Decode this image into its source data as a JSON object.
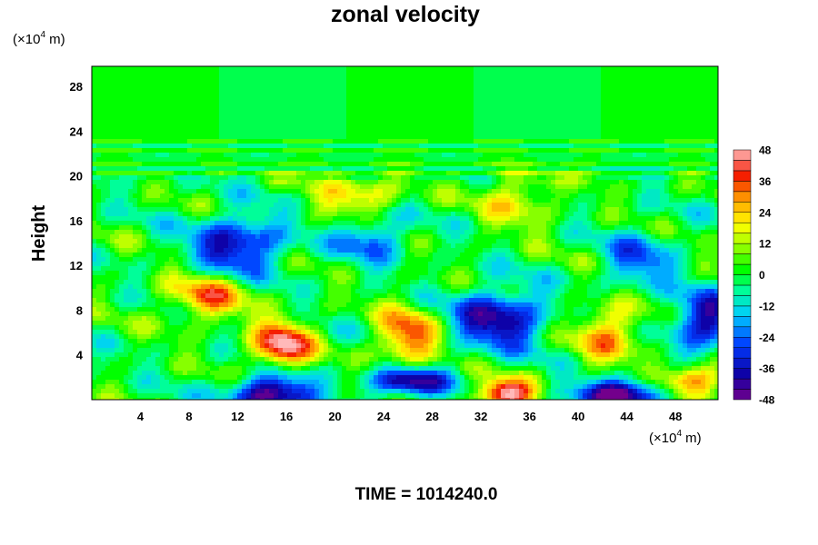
{
  "chart_data": {
    "type": "heatmap",
    "title": "zonal velocity",
    "ylabel": "Height",
    "y_unit": {
      "prefix": "(×10",
      "exp": "4",
      "suffix": " m)"
    },
    "x_unit": {
      "prefix": "(×10",
      "exp": "4",
      "suffix": " m)"
    },
    "xlim": [
      0,
      51.5
    ],
    "ylim": [
      0,
      29.8
    ],
    "x_ticks": [
      4,
      8,
      12,
      16,
      20,
      24,
      28,
      32,
      36,
      40,
      44,
      48
    ],
    "y_ticks": [
      4,
      8,
      12,
      16,
      20,
      24,
      28
    ],
    "colorbar": {
      "min": -48,
      "max": 48,
      "step": 4,
      "tick_labels": [
        48,
        36,
        24,
        12,
        0,
        -12,
        -24,
        -36,
        -48
      ]
    },
    "field_features": [
      {
        "x": 15.6,
        "y": 4.8,
        "value": 48
      },
      {
        "x": 14.8,
        "y": 0.5,
        "value": -50
      },
      {
        "x": 9.5,
        "y": 9.2,
        "value": 30
      },
      {
        "x": 26.0,
        "y": 5.6,
        "value": 36
      },
      {
        "x": 26.0,
        "y": 1.6,
        "value": -44
      },
      {
        "x": 33.5,
        "y": 7.2,
        "value": -42
      },
      {
        "x": 34.0,
        "y": 0.5,
        "value": 50
      },
      {
        "x": 42.5,
        "y": 6.0,
        "value": 28
      },
      {
        "x": 43.5,
        "y": 0.5,
        "value": -50
      },
      {
        "x": 50.5,
        "y": 7.0,
        "value": -40
      },
      {
        "x": 49.5,
        "y": 1.8,
        "value": 36
      },
      {
        "x": 12.0,
        "y": 13.8,
        "value": -38
      },
      {
        "x": 23.0,
        "y": 14.5,
        "value": -26
      },
      {
        "x": 35.0,
        "y": 18.0,
        "value": 20
      },
      {
        "x": 22.0,
        "y": 18.2,
        "value": 22
      },
      {
        "x": 45.0,
        "y": 12.5,
        "value": -24
      }
    ]
  },
  "footer": {
    "time_label": "TIME = 1014240.0"
  }
}
